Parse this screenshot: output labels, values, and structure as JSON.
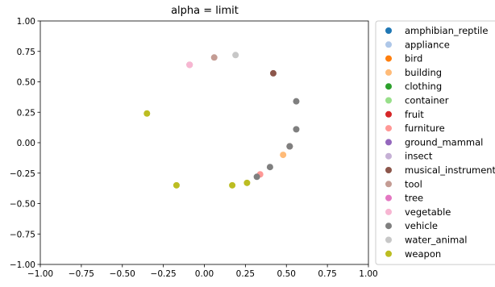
{
  "chart_data": {
    "type": "scatter",
    "title": "alpha = limit",
    "xlabel": "",
    "ylabel": "",
    "xlim": [
      -1.0,
      1.0
    ],
    "ylim": [
      -1.0,
      1.0
    ],
    "xticks": [
      "−1.00",
      "−0.75",
      "−0.50",
      "−0.25",
      "0.00",
      "0.25",
      "0.50",
      "0.75",
      "1.00"
    ],
    "yticks": [
      "1.00",
      "0.75",
      "0.50",
      "0.25",
      "0.00",
      "−0.25",
      "−0.50",
      "−0.75",
      "−1.00"
    ],
    "xtick_values": [
      -1.0,
      -0.75,
      -0.5,
      -0.25,
      0.0,
      0.25,
      0.5,
      0.75,
      1.0
    ],
    "ytick_values": [
      1.0,
      0.75,
      0.5,
      0.25,
      0.0,
      -0.25,
      -0.5,
      -0.75,
      -1.0
    ],
    "grid": false,
    "legend_position": "outside right",
    "series": [
      {
        "name": "amphibian_reptile",
        "color": "#1f77b4",
        "points": []
      },
      {
        "name": "appliance",
        "color": "#aec7e8",
        "points": []
      },
      {
        "name": "bird",
        "color": "#ff7f0e",
        "points": []
      },
      {
        "name": "building",
        "color": "#ffbb78",
        "points": [
          [
            0.48,
            -0.1
          ]
        ]
      },
      {
        "name": "clothing",
        "color": "#2ca02c",
        "points": []
      },
      {
        "name": "container",
        "color": "#98df8a",
        "points": []
      },
      {
        "name": "fruit",
        "color": "#d62728",
        "points": []
      },
      {
        "name": "furniture",
        "color": "#ff9896",
        "points": [
          [
            0.34,
            -0.26
          ]
        ]
      },
      {
        "name": "ground_mammal",
        "color": "#9467bd",
        "points": []
      },
      {
        "name": "insect",
        "color": "#c5b0d5",
        "points": []
      },
      {
        "name": "musical_instrument",
        "color": "#8c564b",
        "points": [
          [
            0.42,
            0.57
          ],
          [
            0.52,
            -0.03
          ]
        ]
      },
      {
        "name": "tool",
        "color": "#c49c94",
        "points": [
          [
            0.06,
            0.7
          ],
          [
            -0.09,
            0.64
          ]
        ]
      },
      {
        "name": "tree",
        "color": "#e377c2",
        "points": []
      },
      {
        "name": "vegetable",
        "color": "#f7b6d2",
        "points": [
          [
            -0.09,
            0.64
          ]
        ]
      },
      {
        "name": "vehicle",
        "color": "#7f7f7f",
        "points": [
          [
            0.56,
            0.34
          ],
          [
            0.56,
            0.11
          ],
          [
            0.4,
            -0.2
          ],
          [
            0.32,
            -0.28
          ],
          [
            0.52,
            -0.03
          ]
        ]
      },
      {
        "name": "water_animal",
        "color": "#c7c7c7",
        "points": [
          [
            0.19,
            0.72
          ]
        ]
      },
      {
        "name": "weapon",
        "color": "#bcbd22",
        "points": [
          [
            -0.35,
            0.24
          ],
          [
            -0.17,
            -0.35
          ],
          [
            0.17,
            -0.35
          ],
          [
            0.26,
            -0.33
          ]
        ]
      }
    ]
  }
}
